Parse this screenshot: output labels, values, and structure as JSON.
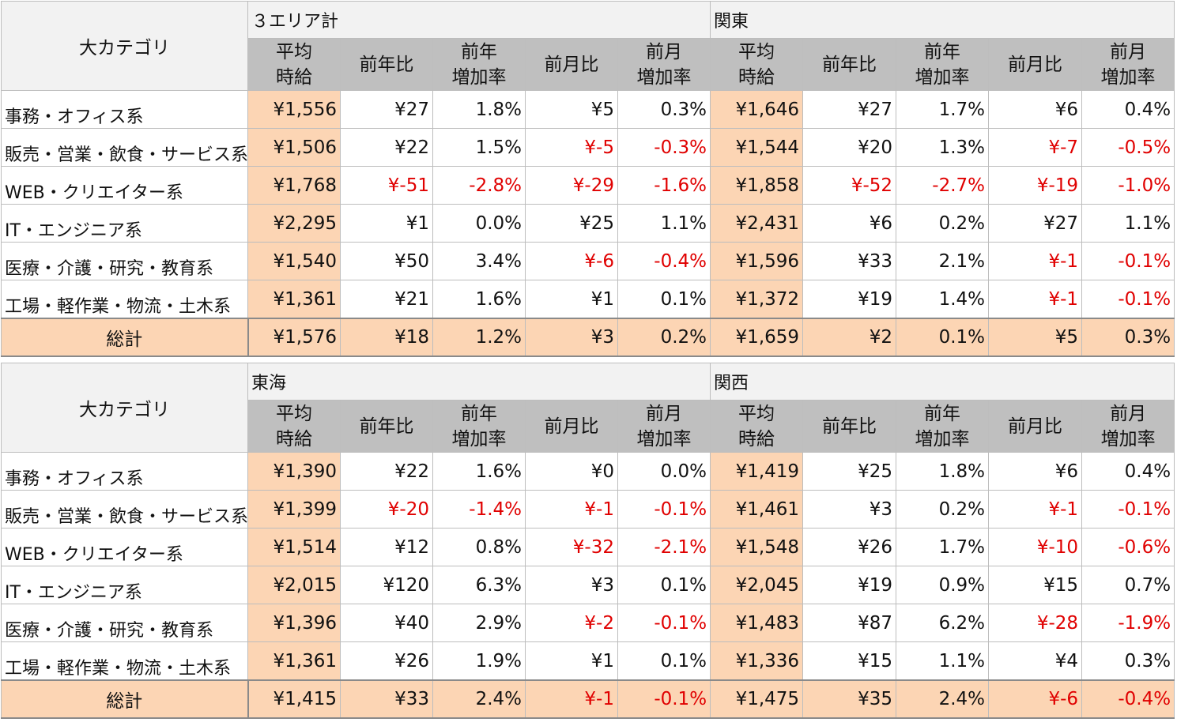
{
  "tables": [
    {
      "category_header": "大カテゴリ",
      "regions": [
        "３エリア計",
        "関東"
      ],
      "column_headers": [
        [
          "平均",
          "時給"
        ],
        [
          "前年比"
        ],
        [
          "前年",
          "増加率"
        ],
        [
          "前月比"
        ],
        [
          "前月",
          "増加率"
        ],
        [
          "平均",
          "時給"
        ],
        [
          "前年比"
        ],
        [
          "前年",
          "増加率"
        ],
        [
          "前月比"
        ],
        [
          "前月",
          "増加率"
        ]
      ],
      "rows": [
        {
          "category": "事務・オフィス系",
          "values": [
            "¥1,556",
            "¥27",
            "1.8%",
            "¥5",
            "0.3%",
            "¥1,646",
            "¥27",
            "1.7%",
            "¥6",
            "0.4%"
          ]
        },
        {
          "category": "販売・営業・飲食・サービス系",
          "values": [
            "¥1,506",
            "¥22",
            "1.5%",
            "¥-5",
            "-0.3%",
            "¥1,544",
            "¥20",
            "1.3%",
            "¥-7",
            "-0.5%"
          ]
        },
        {
          "category": "WEB・クリエイター系",
          "values": [
            "¥1,768",
            "¥-51",
            "-2.8%",
            "¥-29",
            "-1.6%",
            "¥1,858",
            "¥-52",
            "-2.7%",
            "¥-19",
            "-1.0%"
          ]
        },
        {
          "category": "IT・エンジニア系",
          "values": [
            "¥2,295",
            "¥1",
            "0.0%",
            "¥25",
            "1.1%",
            "¥2,431",
            "¥6",
            "0.2%",
            "¥27",
            "1.1%"
          ]
        },
        {
          "category": "医療・介護・研究・教育系",
          "values": [
            "¥1,540",
            "¥50",
            "3.4%",
            "¥-6",
            "-0.4%",
            "¥1,596",
            "¥33",
            "2.1%",
            "¥-1",
            "-0.1%"
          ]
        },
        {
          "category": "工場・軽作業・物流・土木系",
          "values": [
            "¥1,361",
            "¥21",
            "1.6%",
            "¥1",
            "0.1%",
            "¥1,372",
            "¥19",
            "1.4%",
            "¥-1",
            "-0.1%"
          ]
        }
      ],
      "total": {
        "label": "総計",
        "values": [
          "¥1,576",
          "¥18",
          "1.2%",
          "¥3",
          "0.2%",
          "¥1,659",
          "¥2",
          "0.1%",
          "¥5",
          "0.3%"
        ]
      }
    },
    {
      "category_header": "大カテゴリ",
      "regions": [
        "東海",
        "関西"
      ],
      "column_headers": [
        [
          "平均",
          "時給"
        ],
        [
          "前年比"
        ],
        [
          "前年",
          "増加率"
        ],
        [
          "前月比"
        ],
        [
          "前月",
          "増加率"
        ],
        [
          "平均",
          "時給"
        ],
        [
          "前年比"
        ],
        [
          "前年",
          "増加率"
        ],
        [
          "前月比"
        ],
        [
          "前月",
          "増加率"
        ]
      ],
      "rows": [
        {
          "category": "事務・オフィス系",
          "values": [
            "¥1,390",
            "¥22",
            "1.6%",
            "¥0",
            "0.0%",
            "¥1,419",
            "¥25",
            "1.8%",
            "¥6",
            "0.4%"
          ]
        },
        {
          "category": "販売・営業・飲食・サービス系",
          "values": [
            "¥1,399",
            "¥-20",
            "-1.4%",
            "¥-1",
            "-0.1%",
            "¥1,461",
            "¥3",
            "0.2%",
            "¥-1",
            "-0.1%"
          ]
        },
        {
          "category": "WEB・クリエイター系",
          "values": [
            "¥1,514",
            "¥12",
            "0.8%",
            "¥-32",
            "-2.1%",
            "¥1,548",
            "¥26",
            "1.7%",
            "¥-10",
            "-0.6%"
          ]
        },
        {
          "category": "IT・エンジニア系",
          "values": [
            "¥2,015",
            "¥120",
            "6.3%",
            "¥3",
            "0.1%",
            "¥2,045",
            "¥19",
            "0.9%",
            "¥15",
            "0.7%"
          ]
        },
        {
          "category": "医療・介護・研究・教育系",
          "values": [
            "¥1,396",
            "¥40",
            "2.9%",
            "¥-2",
            "-0.1%",
            "¥1,483",
            "¥87",
            "6.2%",
            "¥-28",
            "-1.9%"
          ]
        },
        {
          "category": "工場・軽作業・物流・土木系",
          "values": [
            "¥1,361",
            "¥26",
            "1.9%",
            "¥1",
            "0.1%",
            "¥1,336",
            "¥15",
            "1.1%",
            "¥4",
            "0.3%"
          ]
        }
      ],
      "total": {
        "label": "総計",
        "values": [
          "¥1,415",
          "¥33",
          "2.4%",
          "¥-1",
          "-0.1%",
          "¥1,475",
          "¥35",
          "2.4%",
          "¥-6",
          "-0.4%"
        ]
      }
    }
  ],
  "colors": {
    "highlight": "#fcd5b4",
    "header_gray": "#bfbfbf",
    "header_light": "#f2f2f2",
    "negative": "#e00000"
  }
}
